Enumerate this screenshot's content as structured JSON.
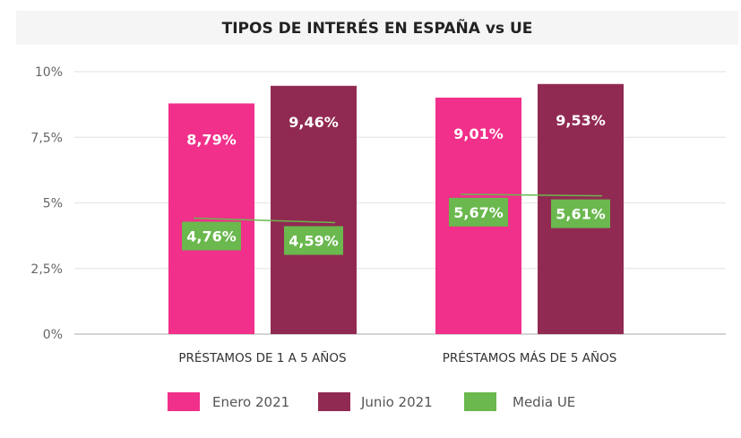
{
  "chart_data": {
    "type": "bar",
    "title": "TIPOS DE INTERÉS EN ESPAÑA vs UE",
    "categories": [
      "PRÉSTAMOS DE 1 A 5 AÑOS",
      "PRÉSTAMOS MÁS DE 5 AÑOS"
    ],
    "series": [
      {
        "name": "Enero 2021",
        "type": "bar",
        "color": "#f0308a",
        "values": [
          8.79,
          9.01
        ],
        "labels": [
          "8,79%",
          "9,01%"
        ]
      },
      {
        "name": "Junio 2021",
        "type": "bar",
        "color": "#912a52",
        "values": [
          9.46,
          9.53
        ],
        "labels": [
          "9,46%",
          "9,53%"
        ]
      },
      {
        "name": "Media UE",
        "type": "line",
        "color": "#6ab84e",
        "values": [
          [
            4.76,
            4.59
          ],
          [
            5.67,
            5.61
          ]
        ],
        "labels": [
          [
            "4,76%",
            "4,59%"
          ],
          [
            "5,67%",
            "5,61%"
          ]
        ]
      }
    ],
    "ylim": [
      0,
      10
    ],
    "yticks": [
      0,
      2.5,
      5,
      7.5,
      10
    ],
    "ytick_labels": [
      "0%",
      "2,5%",
      "5%",
      "7,5%",
      "10%"
    ],
    "grid": true,
    "legend_position": "bottom"
  }
}
